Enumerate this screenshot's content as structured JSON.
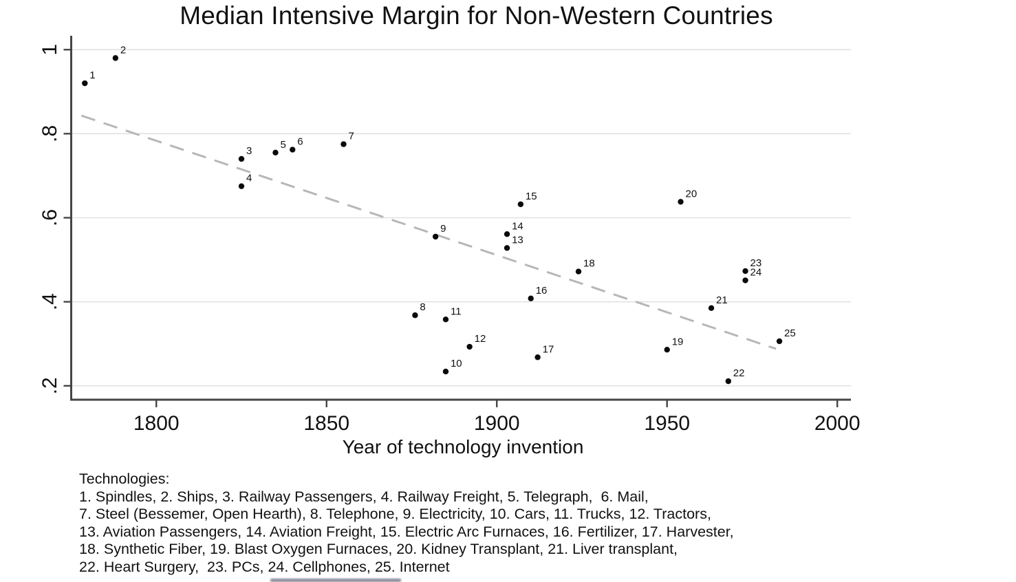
{
  "chart_data": {
    "type": "scatter",
    "title": "Median Intensive Margin for Non-Western Countries",
    "xlabel": "Year of technology invention",
    "ylabel": "",
    "xlim": [
      1775,
      2004
    ],
    "ylim": [
      0.167,
      1.033
    ],
    "grid": "horizontal-only",
    "x_ticks": [
      {
        "label": "1800",
        "value": 1800
      },
      {
        "label": "1850",
        "value": 1850
      },
      {
        "label": "1900",
        "value": 1900
      },
      {
        "label": "1950",
        "value": 1950
      },
      {
        "label": "2000",
        "value": 2000
      }
    ],
    "y_ticks": [
      {
        "label": ".2",
        "value": 0.2
      },
      {
        "label": ".4",
        "value": 0.4
      },
      {
        "label": ".6",
        "value": 0.6
      },
      {
        "label": ".8",
        "value": 0.8
      },
      {
        "label": "1",
        "value": 1.0
      }
    ],
    "points": [
      {
        "label": "1",
        "name": "Spindles",
        "x": 1779,
        "y": 0.92
      },
      {
        "label": "2",
        "name": "Ships",
        "x": 1788,
        "y": 0.98
      },
      {
        "label": "3",
        "name": "Railway Passengers",
        "x": 1825,
        "y": 0.74
      },
      {
        "label": "4",
        "name": "Railway Freight",
        "x": 1825,
        "y": 0.675
      },
      {
        "label": "5",
        "name": "Telegraph",
        "x": 1835,
        "y": 0.755
      },
      {
        "label": "6",
        "name": "Mail",
        "x": 1840,
        "y": 0.762
      },
      {
        "label": "7",
        "name": "Steel (Bessemer, Open Hearth)",
        "x": 1855,
        "y": 0.775
      },
      {
        "label": "8",
        "name": "Telephone",
        "x": 1876,
        "y": 0.368
      },
      {
        "label": "9",
        "name": "Electricity",
        "x": 1882,
        "y": 0.555
      },
      {
        "label": "10",
        "name": "Cars",
        "x": 1885,
        "y": 0.234
      },
      {
        "label": "11",
        "name": "Trucks",
        "x": 1885,
        "y": 0.358
      },
      {
        "label": "12",
        "name": "Tractors",
        "x": 1892,
        "y": 0.293
      },
      {
        "label": "13",
        "name": "Aviation Passengers",
        "x": 1903,
        "y": 0.528
      },
      {
        "label": "14",
        "name": "Aviation Freight",
        "x": 1903,
        "y": 0.561
      },
      {
        "label": "15",
        "name": "Electric Arc Furnaces",
        "x": 1907,
        "y": 0.632
      },
      {
        "label": "16",
        "name": "Fertilizer",
        "x": 1910,
        "y": 0.408
      },
      {
        "label": "17",
        "name": "Harvester",
        "x": 1912,
        "y": 0.268
      },
      {
        "label": "18",
        "name": "Synthetic Fiber",
        "x": 1924,
        "y": 0.472
      },
      {
        "label": "19",
        "name": "Blast Oxygen Furnaces",
        "x": 1950,
        "y": 0.286
      },
      {
        "label": "20",
        "name": "Kidney Transplant",
        "x": 1954,
        "y": 0.638
      },
      {
        "label": "21",
        "name": "Liver transplant",
        "x": 1963,
        "y": 0.385
      },
      {
        "label": "22",
        "name": "Heart Surgery",
        "x": 1968,
        "y": 0.211
      },
      {
        "label": "23",
        "name": "PCs",
        "x": 1973,
        "y": 0.473
      },
      {
        "label": "24",
        "name": "Cellphones",
        "x": 1973,
        "y": 0.451
      },
      {
        "label": "25",
        "name": "Internet",
        "x": 1983,
        "y": 0.306
      }
    ],
    "trend_line": {
      "style": "dashed",
      "x": [
        1778,
        1982
      ],
      "y": [
        0.843,
        0.288
      ]
    },
    "colors": {
      "point": "#0a0a0a",
      "trend": "#b7b7b7",
      "grid": "#e2e2e2",
      "axis": "#454545"
    }
  },
  "footnote": {
    "title": "Technologies:",
    "lines": [
      "1. Spindles, 2. Ships, 3. Railway Passengers, 4. Railway Freight, 5. Telegraph,  6. Mail,",
      "7. Steel (Bessemer, Open Hearth), 8. Telephone, 9. Electricity, 10. Cars, 11. Trucks, 12. Tractors,",
      "13. Aviation Passengers, 14. Aviation Freight, 15. Electric Arc Furnaces, 16. Fertilizer, 17. Harvester,",
      "18. Synthetic Fiber, 19. Blast Oxygen Furnaces, 20. Kidney Transplant, 21. Liver transplant,",
      "22. Heart Surgery,  23. PCs, 24. Cellphones, 25. Internet"
    ]
  }
}
